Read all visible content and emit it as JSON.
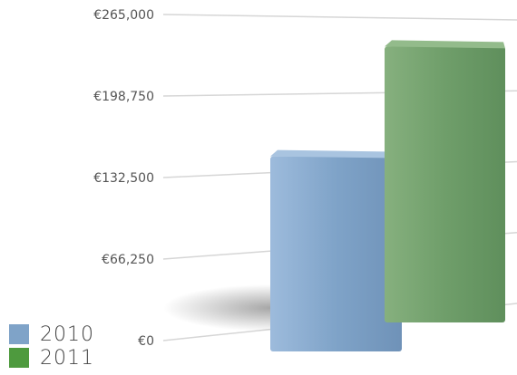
{
  "chart_data": {
    "type": "bar",
    "categories": [
      ""
    ],
    "series": [
      {
        "name": "2010",
        "values": [
          152000
        ],
        "color": "#7fa3c8"
      },
      {
        "name": "2011",
        "values": [
          244000
        ],
        "color": "#6f9e6a"
      }
    ],
    "yticks": [
      "€265,000",
      "€198,750",
      "€132,500",
      "€66,250",
      "€0"
    ],
    "ytick_values": [
      265000,
      198750,
      132500,
      66250,
      0
    ],
    "ylim": [
      0,
      265000
    ],
    "grid": true,
    "legend_position": "bottom-left",
    "title": "",
    "xlabel": "",
    "ylabel": ""
  }
}
